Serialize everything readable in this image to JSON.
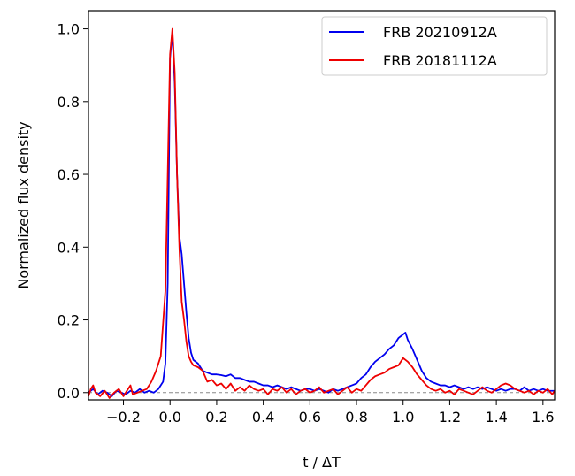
{
  "chart_data": {
    "type": "line",
    "xlabel": "t / ΔT",
    "ylabel": "Normalized flux density",
    "xlim": [
      -0.35,
      1.65
    ],
    "ylim": [
      -0.02,
      1.05
    ],
    "xticks": [
      -0.2,
      0.0,
      0.2,
      0.4,
      0.6,
      0.8,
      1.0,
      1.2,
      1.4,
      1.6
    ],
    "xtick_labels": [
      "−0.2",
      "0.0",
      "0.2",
      "0.4",
      "0.6",
      "0.8",
      "1.0",
      "1.2",
      "1.4",
      "1.6"
    ],
    "yticks": [
      0.0,
      0.2,
      0.4,
      0.6,
      0.8,
      1.0
    ],
    "ytick_labels": [
      "0.0",
      "0.2",
      "0.4",
      "0.6",
      "0.8",
      "1.0"
    ],
    "baseline": 0.0,
    "legend_position": "top-right",
    "grid": false,
    "series": [
      {
        "name": "FRB 20210912A",
        "color": "#0000ee",
        "points": [
          [
            -0.35,
            0.0
          ],
          [
            -0.33,
            0.01
          ],
          [
            -0.31,
            -0.005
          ],
          [
            -0.29,
            0.005
          ],
          [
            -0.27,
            0.0
          ],
          [
            -0.25,
            -0.01
          ],
          [
            -0.23,
            0.005
          ],
          [
            -0.21,
            0.0
          ],
          [
            -0.19,
            -0.005
          ],
          [
            -0.17,
            0.005
          ],
          [
            -0.15,
            0.0
          ],
          [
            -0.13,
            0.01
          ],
          [
            -0.11,
            0.0
          ],
          [
            -0.09,
            0.005
          ],
          [
            -0.07,
            0.0
          ],
          [
            -0.05,
            0.01
          ],
          [
            -0.03,
            0.03
          ],
          [
            -0.02,
            0.08
          ],
          [
            -0.01,
            0.3
          ],
          [
            0.0,
            0.92
          ],
          [
            0.01,
            0.99
          ],
          [
            0.02,
            0.85
          ],
          [
            0.03,
            0.6
          ],
          [
            0.04,
            0.43
          ],
          [
            0.05,
            0.38
          ],
          [
            0.06,
            0.3
          ],
          [
            0.07,
            0.22
          ],
          [
            0.08,
            0.15
          ],
          [
            0.09,
            0.11
          ],
          [
            0.1,
            0.09
          ],
          [
            0.12,
            0.08
          ],
          [
            0.14,
            0.06
          ],
          [
            0.16,
            0.055
          ],
          [
            0.18,
            0.05
          ],
          [
            0.2,
            0.05
          ],
          [
            0.22,
            0.048
          ],
          [
            0.24,
            0.045
          ],
          [
            0.26,
            0.05
          ],
          [
            0.28,
            0.04
          ],
          [
            0.3,
            0.04
          ],
          [
            0.32,
            0.035
          ],
          [
            0.34,
            0.03
          ],
          [
            0.36,
            0.03
          ],
          [
            0.38,
            0.025
          ],
          [
            0.4,
            0.02
          ],
          [
            0.42,
            0.02
          ],
          [
            0.44,
            0.015
          ],
          [
            0.46,
            0.02
          ],
          [
            0.48,
            0.015
          ],
          [
            0.5,
            0.01
          ],
          [
            0.52,
            0.015
          ],
          [
            0.54,
            0.01
          ],
          [
            0.56,
            0.005
          ],
          [
            0.58,
            0.01
          ],
          [
            0.6,
            0.01
          ],
          [
            0.62,
            0.005
          ],
          [
            0.64,
            0.01
          ],
          [
            0.66,
            0.005
          ],
          [
            0.68,
            0.0
          ],
          [
            0.7,
            0.01
          ],
          [
            0.72,
            0.005
          ],
          [
            0.74,
            0.01
          ],
          [
            0.76,
            0.015
          ],
          [
            0.78,
            0.02
          ],
          [
            0.8,
            0.025
          ],
          [
            0.82,
            0.04
          ],
          [
            0.84,
            0.05
          ],
          [
            0.86,
            0.07
          ],
          [
            0.88,
            0.085
          ],
          [
            0.9,
            0.095
          ],
          [
            0.92,
            0.105
          ],
          [
            0.94,
            0.12
          ],
          [
            0.96,
            0.13
          ],
          [
            0.98,
            0.15
          ],
          [
            1.0,
            0.16
          ],
          [
            1.01,
            0.165
          ],
          [
            1.02,
            0.145
          ],
          [
            1.04,
            0.12
          ],
          [
            1.06,
            0.09
          ],
          [
            1.08,
            0.06
          ],
          [
            1.1,
            0.04
          ],
          [
            1.12,
            0.03
          ],
          [
            1.14,
            0.025
          ],
          [
            1.16,
            0.02
          ],
          [
            1.18,
            0.02
          ],
          [
            1.2,
            0.015
          ],
          [
            1.22,
            0.02
          ],
          [
            1.24,
            0.015
          ],
          [
            1.26,
            0.01
          ],
          [
            1.28,
            0.015
          ],
          [
            1.3,
            0.01
          ],
          [
            1.32,
            0.015
          ],
          [
            1.34,
            0.01
          ],
          [
            1.36,
            0.015
          ],
          [
            1.38,
            0.01
          ],
          [
            1.4,
            0.005
          ],
          [
            1.42,
            0.01
          ],
          [
            1.44,
            0.005
          ],
          [
            1.46,
            0.01
          ],
          [
            1.48,
            0.01
          ],
          [
            1.5,
            0.005
          ],
          [
            1.52,
            0.015
          ],
          [
            1.54,
            0.005
          ],
          [
            1.56,
            0.01
          ],
          [
            1.58,
            0.005
          ],
          [
            1.6,
            0.01
          ],
          [
            1.62,
            0.005
          ],
          [
            1.65,
            0.005
          ]
        ]
      },
      {
        "name": "FRB 20181112A",
        "color": "#ee0000",
        "points": [
          [
            -0.35,
            -0.01
          ],
          [
            -0.34,
            0.01
          ],
          [
            -0.33,
            0.02
          ],
          [
            -0.32,
            0.0
          ],
          [
            -0.3,
            -0.01
          ],
          [
            -0.28,
            0.005
          ],
          [
            -0.26,
            -0.015
          ],
          [
            -0.24,
            0.0
          ],
          [
            -0.22,
            0.01
          ],
          [
            -0.2,
            -0.01
          ],
          [
            -0.18,
            0.01
          ],
          [
            -0.17,
            0.02
          ],
          [
            -0.16,
            -0.005
          ],
          [
            -0.14,
            0.0
          ],
          [
            -0.12,
            0.005
          ],
          [
            -0.1,
            0.01
          ],
          [
            -0.08,
            0.03
          ],
          [
            -0.06,
            0.06
          ],
          [
            -0.04,
            0.1
          ],
          [
            -0.02,
            0.28
          ],
          [
            -0.01,
            0.6
          ],
          [
            0.0,
            0.93
          ],
          [
            0.01,
            1.0
          ],
          [
            0.02,
            0.88
          ],
          [
            0.03,
            0.6
          ],
          [
            0.04,
            0.4
          ],
          [
            0.05,
            0.25
          ],
          [
            0.06,
            0.2
          ],
          [
            0.07,
            0.14
          ],
          [
            0.08,
            0.1
          ],
          [
            0.09,
            0.085
          ],
          [
            0.1,
            0.075
          ],
          [
            0.12,
            0.07
          ],
          [
            0.14,
            0.06
          ],
          [
            0.16,
            0.03
          ],
          [
            0.18,
            0.035
          ],
          [
            0.2,
            0.02
          ],
          [
            0.22,
            0.025
          ],
          [
            0.24,
            0.01
          ],
          [
            0.26,
            0.025
          ],
          [
            0.28,
            0.005
          ],
          [
            0.3,
            0.015
          ],
          [
            0.32,
            0.005
          ],
          [
            0.34,
            0.02
          ],
          [
            0.36,
            0.01
          ],
          [
            0.38,
            0.005
          ],
          [
            0.4,
            0.01
          ],
          [
            0.42,
            -0.005
          ],
          [
            0.44,
            0.01
          ],
          [
            0.46,
            0.005
          ],
          [
            0.48,
            0.015
          ],
          [
            0.5,
            0.0
          ],
          [
            0.52,
            0.01
          ],
          [
            0.54,
            -0.005
          ],
          [
            0.56,
            0.005
          ],
          [
            0.58,
            0.01
          ],
          [
            0.6,
            0.0
          ],
          [
            0.62,
            0.005
          ],
          [
            0.64,
            0.015
          ],
          [
            0.66,
            0.0
          ],
          [
            0.68,
            0.005
          ],
          [
            0.7,
            0.01
          ],
          [
            0.72,
            -0.005
          ],
          [
            0.74,
            0.005
          ],
          [
            0.76,
            0.015
          ],
          [
            0.78,
            0.0
          ],
          [
            0.8,
            0.01
          ],
          [
            0.82,
            0.005
          ],
          [
            0.84,
            0.02
          ],
          [
            0.86,
            0.035
          ],
          [
            0.88,
            0.045
          ],
          [
            0.9,
            0.05
          ],
          [
            0.92,
            0.055
          ],
          [
            0.94,
            0.065
          ],
          [
            0.96,
            0.07
          ],
          [
            0.98,
            0.075
          ],
          [
            1.0,
            0.095
          ],
          [
            1.02,
            0.085
          ],
          [
            1.04,
            0.07
          ],
          [
            1.06,
            0.05
          ],
          [
            1.08,
            0.035
          ],
          [
            1.1,
            0.02
          ],
          [
            1.12,
            0.01
          ],
          [
            1.14,
            0.005
          ],
          [
            1.16,
            0.01
          ],
          [
            1.18,
            0.0
          ],
          [
            1.2,
            0.005
          ],
          [
            1.22,
            -0.005
          ],
          [
            1.24,
            0.01
          ],
          [
            1.26,
            0.005
          ],
          [
            1.28,
            0.0
          ],
          [
            1.3,
            -0.005
          ],
          [
            1.32,
            0.005
          ],
          [
            1.34,
            0.015
          ],
          [
            1.36,
            0.005
          ],
          [
            1.38,
            0.0
          ],
          [
            1.4,
            0.01
          ],
          [
            1.42,
            0.02
          ],
          [
            1.44,
            0.025
          ],
          [
            1.46,
            0.02
          ],
          [
            1.48,
            0.01
          ],
          [
            1.5,
            0.005
          ],
          [
            1.52,
            0.0
          ],
          [
            1.54,
            0.005
          ],
          [
            1.56,
            -0.005
          ],
          [
            1.58,
            0.005
          ],
          [
            1.6,
            0.0
          ],
          [
            1.62,
            0.01
          ],
          [
            1.64,
            -0.005
          ],
          [
            1.65,
            0.005
          ]
        ]
      }
    ]
  }
}
